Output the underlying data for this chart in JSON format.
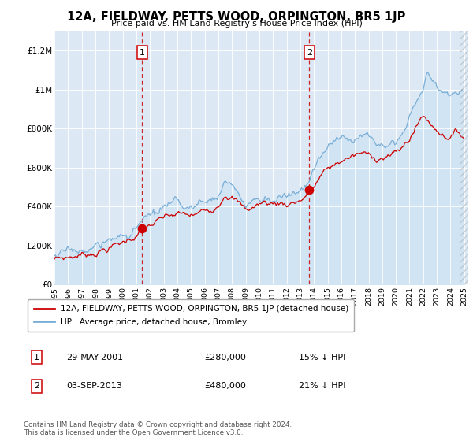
{
  "title": "12A, FIELDWAY, PETTS WOOD, ORPINGTON, BR5 1JP",
  "subtitle": "Price paid vs. HM Land Registry's House Price Index (HPI)",
  "plot_bg_color": "#dce9f5",
  "ylim": [
    0,
    1300000
  ],
  "yticks": [
    0,
    200000,
    400000,
    600000,
    800000,
    1000000,
    1200000
  ],
  "ytick_labels": [
    "£0",
    "£200K",
    "£400K",
    "£600K",
    "£800K",
    "£1M",
    "£1.2M"
  ],
  "sale1_year": 2001.42,
  "sale1_price": 280000,
  "sale2_year": 2013.67,
  "sale2_price": 480000,
  "sale1_date": "29-MAY-2001",
  "sale2_date": "03-SEP-2013",
  "sale1_hpi_pct": "15% ↓ HPI",
  "sale2_hpi_pct": "21% ↓ HPI",
  "red_line_color": "#cc0000",
  "blue_line_color": "#7aaed6",
  "blue_fill_color": "#d0e4f4",
  "footer_text": "Contains HM Land Registry data © Crown copyright and database right 2024.\nThis data is licensed under the Open Government Licence v3.0.",
  "legend_line1": "12A, FIELDWAY, PETTS WOOD, ORPINGTON, BR5 1JP (detached house)",
  "legend_line2": "HPI: Average price, detached house, Bromley"
}
